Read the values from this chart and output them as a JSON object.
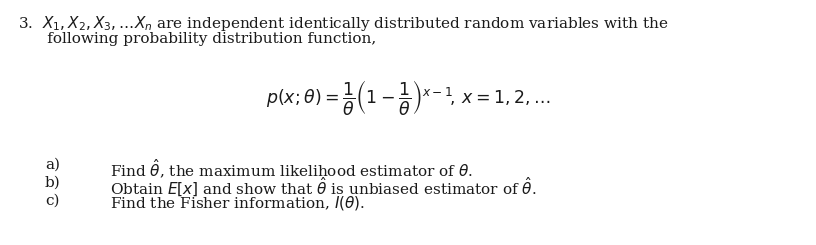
{
  "background_color": "#ffffff",
  "figsize": [
    8.16,
    2.45
  ],
  "dpi": 100,
  "line1": "3.  $X_1, X_2, X_3, \\ldots X_n$ are independent identically distributed random variables with the",
  "line2": "      following probability distribution function,",
  "formula": "$p(x; \\theta) = \\dfrac{1}{\\theta}\\left(1 - \\dfrac{1}{\\theta}\\right)^{x-1}\\!,\\, x = 1, 2, \\ldots$",
  "item_a_label": "a)",
  "item_b_label": "b)",
  "item_c_label": "c)",
  "item_a": "Find $\\hat{\\theta}$, the maximum likelihood estimator of $\\theta$.",
  "item_b": "Obtain $E[x]$ and show that $\\hat{\\theta}$ is unbiased estimator of $\\hat{\\theta}$.",
  "item_c": "Find the Fisher information, $I(\\theta)$.",
  "font_size_main": 11.0,
  "font_size_formula": 12.5,
  "text_color": "#1a1a1a"
}
